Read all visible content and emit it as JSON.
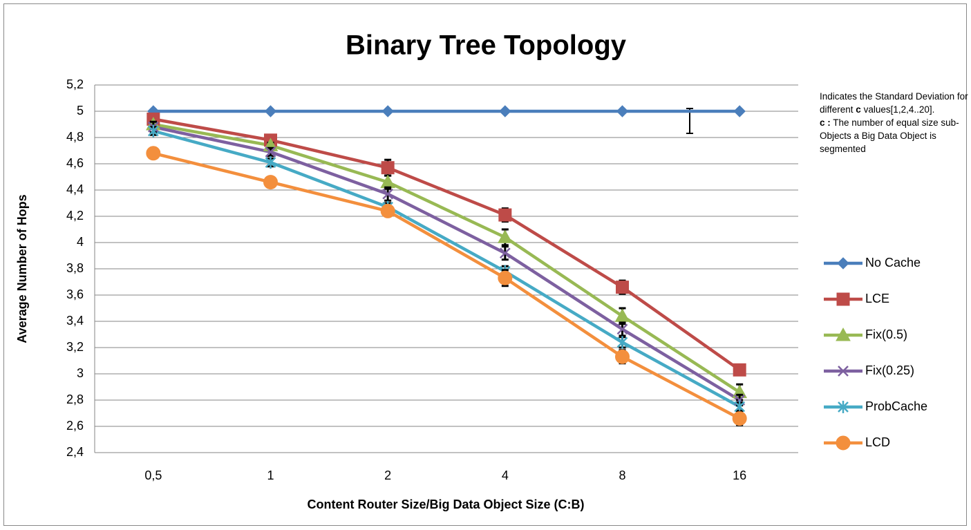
{
  "chart_data": {
    "type": "line",
    "title": "Binary Tree Topology",
    "x_label": "Content Router Size/Big Data Object Size (C:B)",
    "y_label": "Average Number of Hops",
    "categories": [
      "0,5",
      "1",
      "2",
      "4",
      "8",
      "16"
    ],
    "ylim": [
      2.4,
      5.2
    ],
    "yticks": [
      {
        "value": 2.4,
        "label": "2,4"
      },
      {
        "value": 2.6,
        "label": "2,6"
      },
      {
        "value": 2.8,
        "label": "2,8"
      },
      3,
      {
        "value": 3.2,
        "label": "3,2"
      },
      {
        "value": 3.4,
        "label": "3,4"
      },
      {
        "value": 3.6,
        "label": "3,6"
      },
      {
        "value": 3.8,
        "label": "3,8"
      },
      4,
      {
        "value": 4.2,
        "label": "4,2"
      },
      {
        "value": 4.4,
        "label": "4,4"
      },
      {
        "value": 4.6,
        "label": "4,6"
      },
      {
        "value": 4.8,
        "label": "4,8"
      },
      5,
      {
        "value": 5.2,
        "label": "5,2"
      }
    ],
    "grid": true,
    "legend": "right",
    "annotation": {
      "parts": [
        "Indicates the Standard Deviation for different ",
        "c",
        " values[1,2,4..20].",
        "c :",
        " The number of equal size sub-Objects a Big Data Object is segmented"
      ]
    },
    "series": [
      {
        "name": "No Cache",
        "color": "#4a7ebb",
        "marker": "diamond",
        "values": [
          5,
          5,
          5,
          5,
          5,
          5
        ]
      },
      {
        "name": "LCE",
        "color": "#be4b48",
        "marker": "square",
        "values": [
          4.94,
          4.78,
          4.57,
          4.21,
          3.66,
          3.03
        ],
        "errors": [
          0.02,
          0.02,
          0.06,
          0.05,
          0.05,
          0.03
        ]
      },
      {
        "name": "Fix(0.5)",
        "color": "#98b954",
        "marker": "triangle",
        "values": [
          4.9,
          4.74,
          4.46,
          4.04,
          3.44,
          2.86
        ],
        "errors": [
          0.02,
          0.02,
          0.05,
          0.06,
          0.06,
          0.06
        ]
      },
      {
        "name": "Fix(0.25)",
        "color": "#7d60a0",
        "marker": "cross",
        "values": [
          4.88,
          4.69,
          4.37,
          3.92,
          3.34,
          2.8
        ],
        "errors": [
          0.04,
          0.03,
          0.05,
          0.05,
          0.05,
          0.04
        ]
      },
      {
        "name": "ProbCache",
        "color": "#46aac5",
        "marker": "star",
        "values": [
          4.85,
          4.61,
          4.27,
          3.78,
          3.24,
          2.75
        ],
        "errors": [
          0.03,
          0.03,
          0.03,
          0.04,
          0.04,
          0.03
        ]
      },
      {
        "name": "LCD",
        "color": "#f38f3d",
        "marker": "circle",
        "values": [
          4.68,
          4.46,
          4.24,
          3.73,
          3.13,
          2.66
        ],
        "errors": [
          0.03,
          0.04,
          0.04,
          0.06,
          0.05,
          0.05
        ]
      }
    ]
  }
}
